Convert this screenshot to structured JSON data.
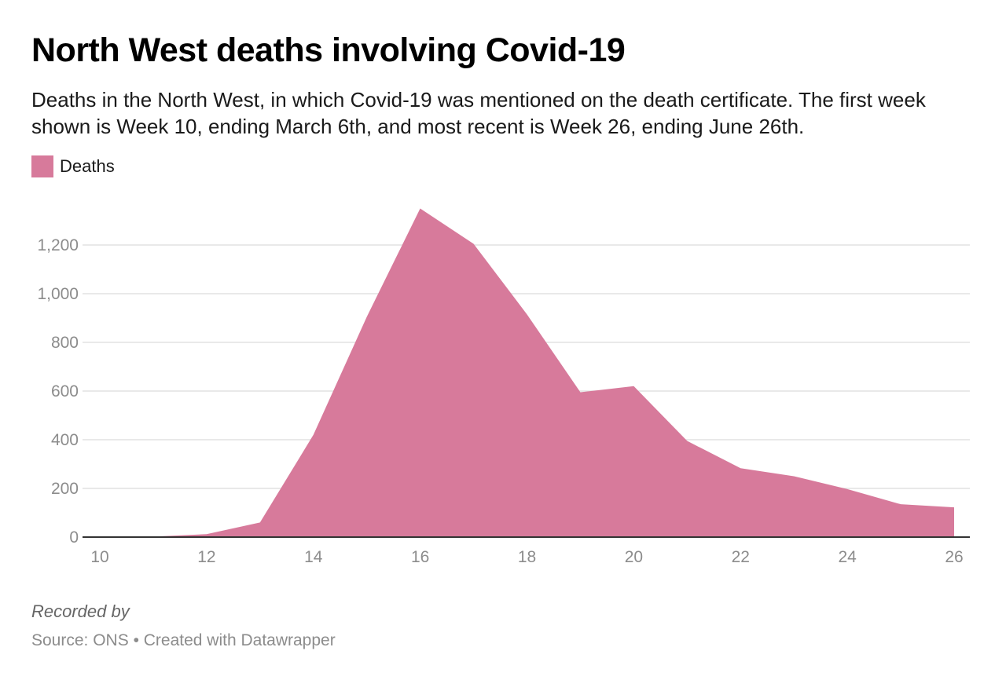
{
  "title": "North West deaths involving Covid-19",
  "subtitle": "Deaths in the North West, in which Covid-19 was mentioned on the death certificate. The first week shown is Week 10, ending March 6th, and most recent is Week 26, ending June 26th.",
  "legend": {
    "label": "Deaths",
    "color": "#d77a9b"
  },
  "note": "Recorded by",
  "footer": {
    "source": "Source: ONS",
    "separator": "•",
    "credit": "Created with Datawrapper"
  },
  "chart_data": {
    "type": "area",
    "title": "North West deaths involving Covid-19",
    "xlabel": "",
    "ylabel": "",
    "series": [
      {
        "name": "Deaths",
        "color": "#d77a9b",
        "x": [
          10,
          11,
          12,
          13,
          14,
          15,
          16,
          17,
          18,
          19,
          20,
          21,
          22,
          23,
          24,
          25,
          26
        ],
        "values": [
          0,
          2,
          12,
          60,
          420,
          905,
          1350,
          1205,
          915,
          595,
          620,
          395,
          283,
          250,
          197,
          135,
          122
        ]
      }
    ],
    "x_ticks": [
      10,
      12,
      14,
      16,
      18,
      20,
      22,
      24,
      26
    ],
    "y_ticks": [
      0,
      200,
      400,
      600,
      800,
      1000,
      1200
    ],
    "y_tick_labels": [
      "0",
      "200",
      "400",
      "600",
      "800",
      "1,000",
      "1,200"
    ],
    "xlim": [
      10,
      26
    ],
    "ylim": [
      0,
      1350
    ],
    "grid": true,
    "legend_position": "top-left"
  }
}
